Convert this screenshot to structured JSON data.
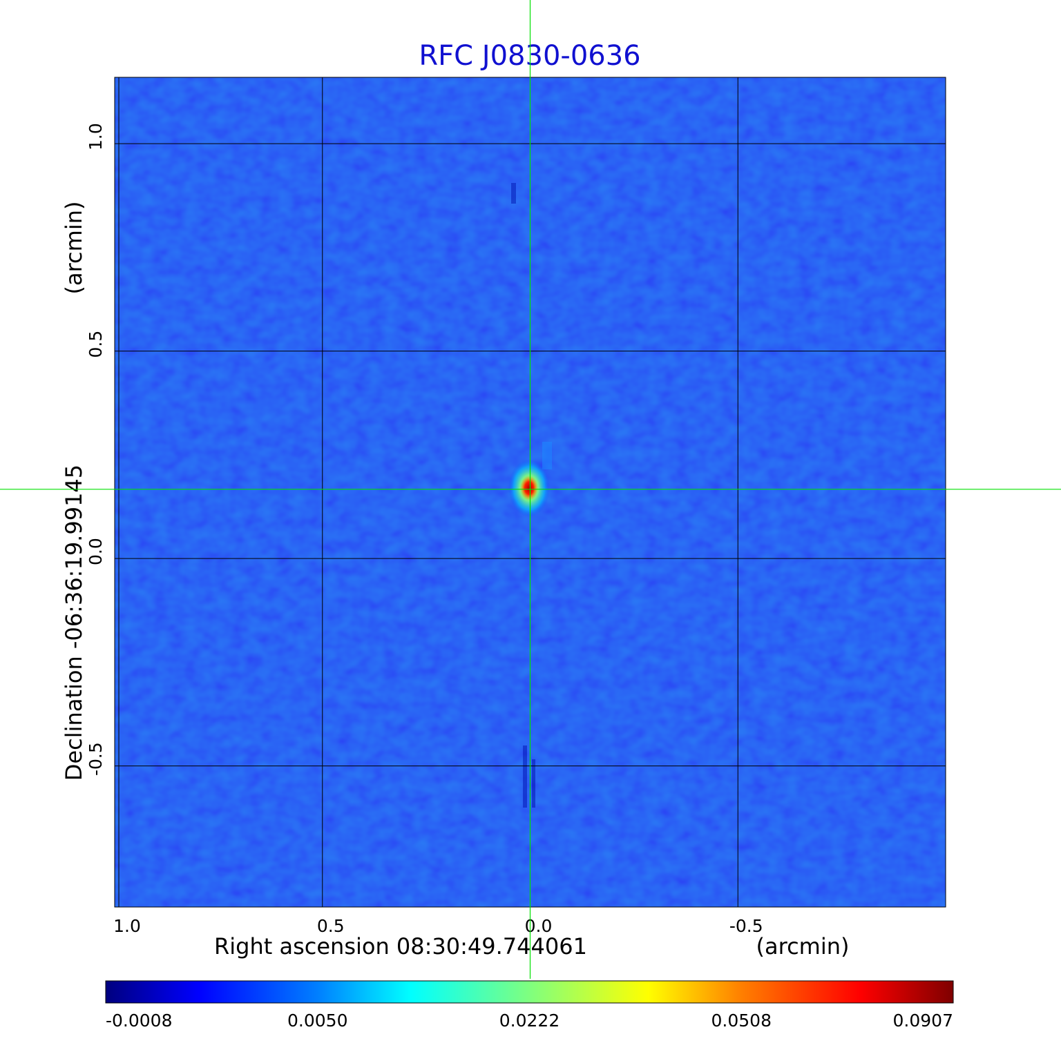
{
  "chart_data": {
    "type": "heatmap",
    "title": "RFC J0830-0636",
    "xlabel": "Right ascension  08:30:49.744061",
    "xunit": "(arcmin)",
    "ylabel": "Declination  -06:36:19.99145",
    "yunit": "(arcmin)",
    "xlim": [
      1.0,
      -1.0
    ],
    "ylim": [
      -0.84,
      1.16
    ],
    "x_ticks": [
      "1.0",
      "0.5",
      "0.0",
      "-0.5"
    ],
    "x_tick_values": [
      0.99,
      0.5,
      0.0,
      -0.5
    ],
    "y_ticks": [
      "1.0",
      "0.5",
      "0.0",
      "-0.5"
    ],
    "y_tick_values": [
      1.0,
      0.5,
      0.0,
      -0.5
    ],
    "grid": true,
    "crosshair": {
      "x": 0.0,
      "y": 0.167,
      "color": "#00e000"
    },
    "source_peak": {
      "x": 0.0,
      "y": 0.167,
      "value": 0.0907
    },
    "colormap": "jet",
    "colorbar": {
      "position": "bottom",
      "ticks": [
        "-0.0008",
        "0.0050",
        "0.0222",
        "0.0508",
        "0.0907"
      ],
      "range": [
        -0.0008,
        0.0907
      ]
    }
  }
}
